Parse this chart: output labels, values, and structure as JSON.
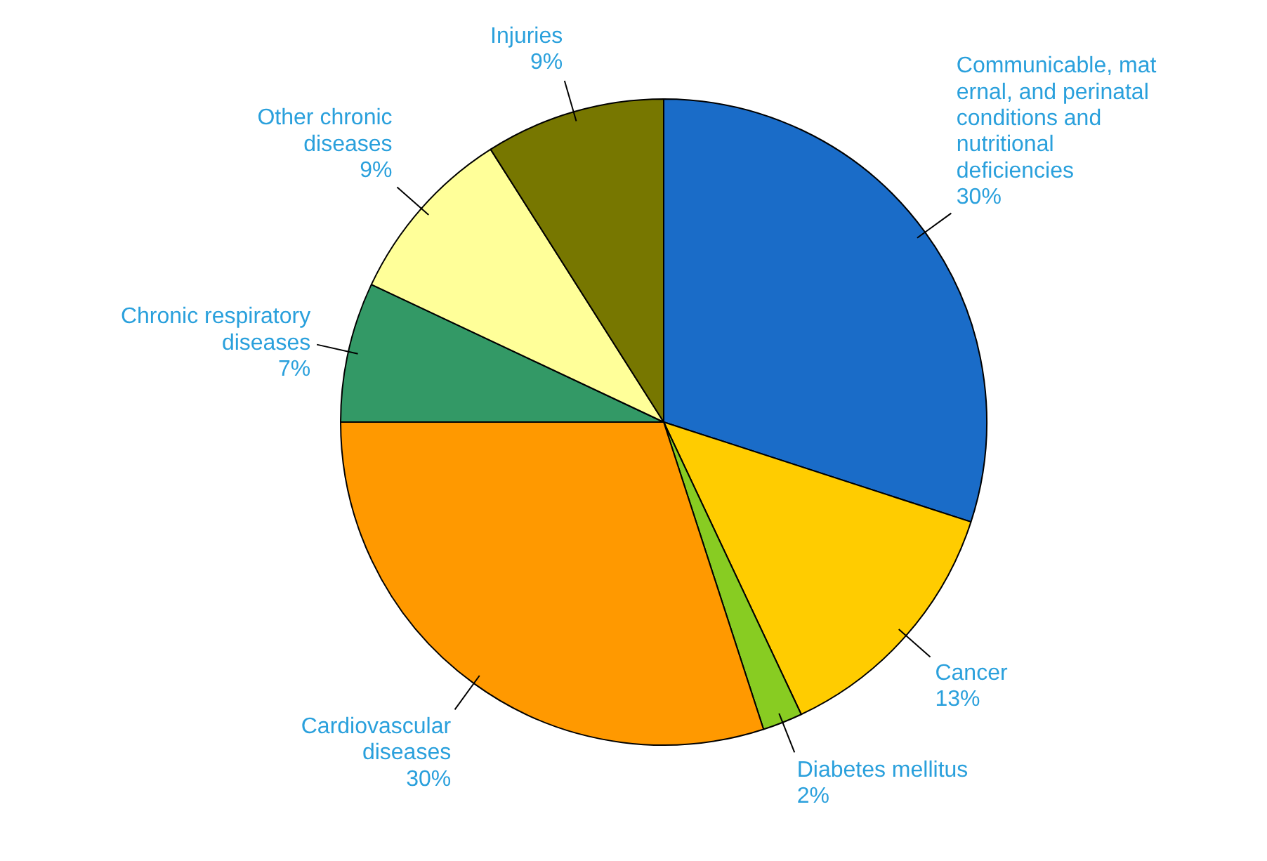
{
  "chart_data": {
    "type": "pie",
    "categories": [
      "Communicable, mat\nernal, and perinatal\nconditions and\nnutritional\ndeficiencies",
      "Cancer",
      "Diabetes mellitus",
      "Cardiovascular\ndiseases",
      "Chronic respiratory\ndiseases",
      "Other chronic\ndiseases",
      "Injuries"
    ],
    "values": [
      30,
      13,
      2,
      30,
      7,
      9,
      9
    ],
    "value_labels": [
      "30%",
      "13%",
      "2%",
      "30%",
      "7%",
      "9%",
      "9%"
    ],
    "colors": [
      "#1a6cc8",
      "#ffcc00",
      "#88cc22",
      "#ff9900",
      "#339966",
      "#ffff99",
      "#777700"
    ]
  }
}
